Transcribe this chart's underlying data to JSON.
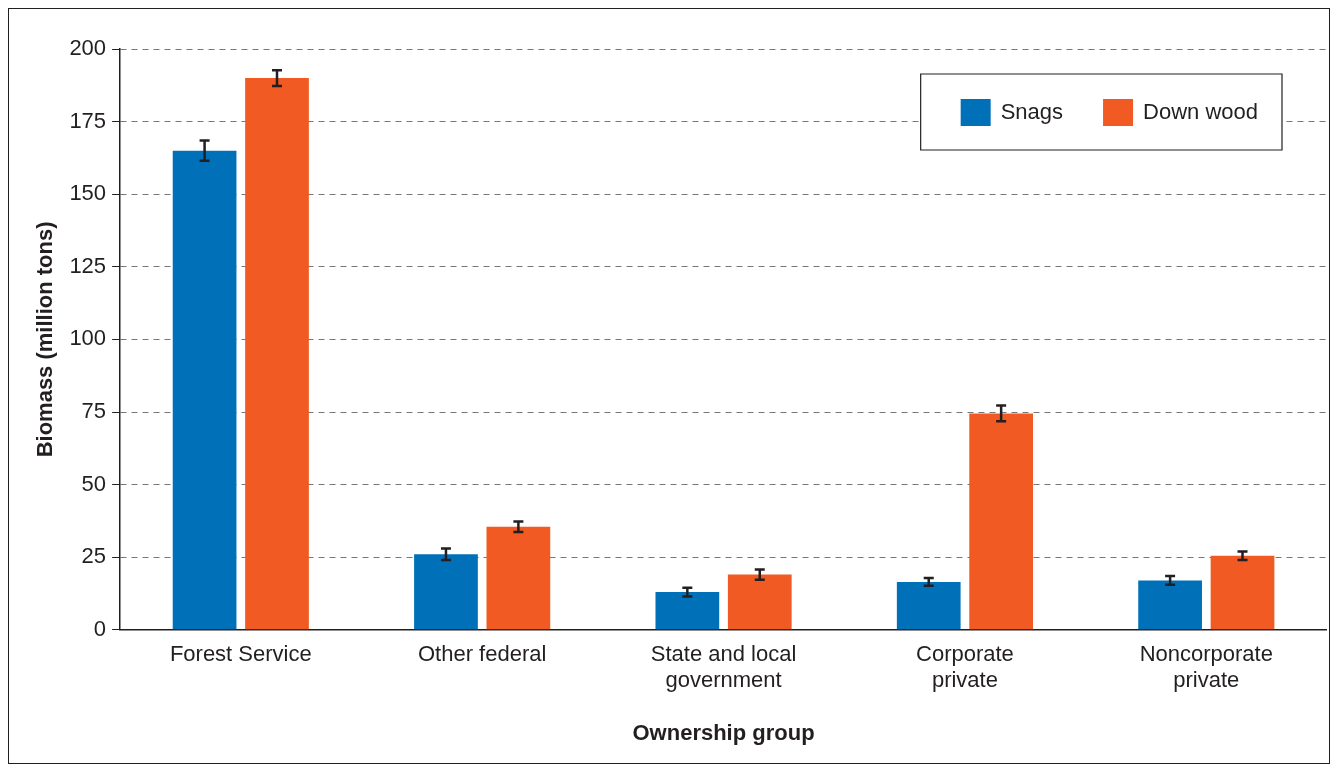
{
  "chart_data": {
    "type": "bar",
    "xlabel": "Ownership group",
    "ylabel": "Biomass (million tons)",
    "categories": [
      "Forest Service",
      "Other federal",
      "State and local government",
      "Corporate private",
      "Noncorporate private"
    ],
    "series": [
      {
        "name": "Snags",
        "color": "#0070b8",
        "values": [
          165,
          26,
          13,
          16.5,
          17
        ],
        "errors": [
          3.5,
          2,
          1.5,
          1.3,
          1.5
        ]
      },
      {
        "name": "Down wood",
        "color": "#f15a22",
        "values": [
          190,
          35.5,
          19,
          74.5,
          25.5
        ],
        "errors": [
          2.7,
          1.8,
          1.8,
          2.7,
          1.5
        ]
      }
    ],
    "ylim": [
      0,
      200
    ],
    "yticks": [
      0,
      25,
      50,
      75,
      100,
      125,
      150,
      175,
      200
    ],
    "grid": "y",
    "legend": "top right"
  }
}
